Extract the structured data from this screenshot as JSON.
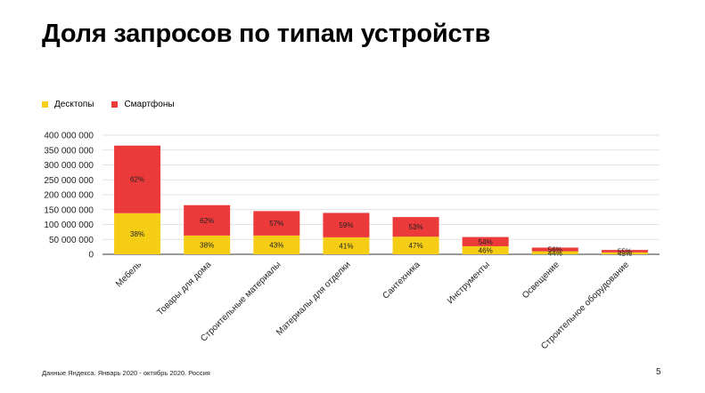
{
  "title": "Доля запросов по типам устройств",
  "footer": "Данные Яндекса. Январь 2020 - октябрь 2020. Россия",
  "page_number": "5",
  "colors": {
    "desktop": "#f5cd14",
    "smartphone": "#ec3a3a",
    "grid": "#d9d9d9"
  },
  "chart_data": {
    "type": "bar",
    "stacked": true,
    "grid": true,
    "legend_position": "top-left",
    "ylim": [
      0,
      400000000
    ],
    "yticks": [
      "0",
      "50 000 000",
      "100 000 000",
      "150 000 000",
      "200 000 000",
      "250 000 000",
      "300 000 000",
      "350 000 000",
      "400 000 000"
    ],
    "categories": [
      "Мебель",
      "Товары для дома",
      "Строительные материалы",
      "Материалы для отделки",
      "Сантехника",
      "Инструменты",
      "Освещение",
      "Строительное оборудование"
    ],
    "series": [
      {
        "name": "Десктопы",
        "values": [
          138000000,
          63000000,
          63000000,
          57000000,
          59000000,
          27000000,
          10000000,
          6500000
        ],
        "labels": [
          "38%",
          "38%",
          "43%",
          "41%",
          "47%",
          "46%",
          "44%",
          "45%"
        ]
      },
      {
        "name": "Смартфоны",
        "values": [
          227000000,
          102000000,
          82000000,
          82000000,
          66000000,
          31000000,
          12500000,
          8000000
        ],
        "labels": [
          "62%",
          "62%",
          "57%",
          "59%",
          "53%",
          "54%",
          "56%",
          "55%"
        ]
      }
    ]
  }
}
